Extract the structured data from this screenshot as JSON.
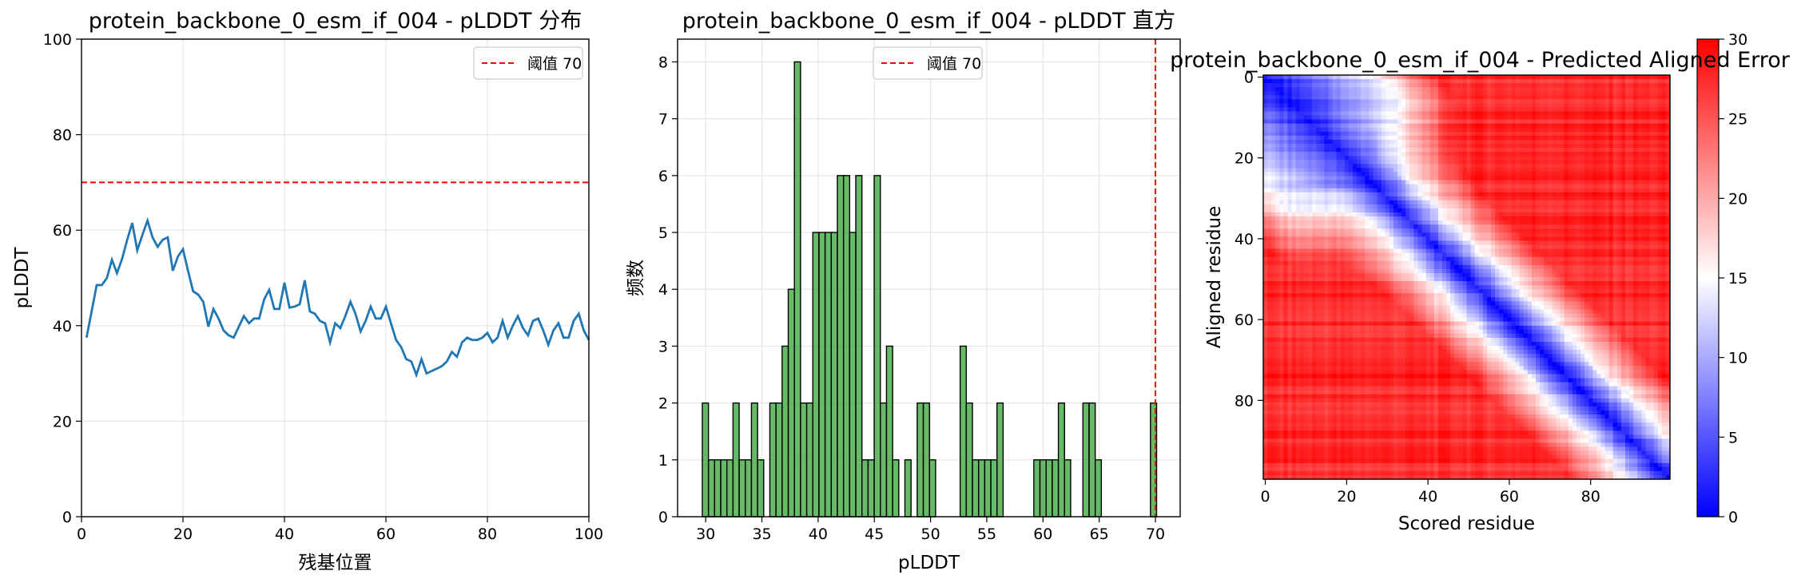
{
  "chart_data": [
    {
      "type": "line",
      "title": "protein_backbone_0_esm_if_004 - pLDDT 分布",
      "xlabel": "残基位置",
      "ylabel": "pLDDT",
      "xlim": [
        0,
        100
      ],
      "ylim": [
        0,
        100
      ],
      "xticks": [
        0,
        20,
        40,
        60,
        80,
        100
      ],
      "yticks": [
        0,
        20,
        40,
        60,
        80,
        100
      ],
      "grid": true,
      "legend_position": "top-right",
      "series": [
        {
          "color": "#1f77b4",
          "x": [
            1,
            2,
            3,
            4,
            5,
            6,
            7,
            8,
            9,
            10,
            11,
            12,
            13,
            14,
            15,
            16,
            17,
            18,
            19,
            20,
            21,
            22,
            23,
            24,
            25,
            26,
            27,
            28,
            29,
            30,
            31,
            32,
            33,
            34,
            35,
            36,
            37,
            38,
            39,
            40,
            41,
            42,
            43,
            44,
            45,
            46,
            47,
            48,
            49,
            50,
            51,
            52,
            53,
            54,
            55,
            56,
            57,
            58,
            59,
            60,
            61,
            62,
            63,
            64,
            65,
            66,
            67,
            68,
            69,
            70,
            71,
            72,
            73,
            74,
            75,
            76,
            77,
            78,
            79,
            80,
            81,
            82,
            83,
            84,
            85,
            86,
            87,
            88,
            89,
            90,
            91,
            92,
            93,
            94,
            95,
            96,
            97,
            98,
            99,
            100
          ],
          "y": [
            37.5,
            43,
            48.5,
            48.5,
            50,
            53.8,
            51,
            54,
            58,
            61.5,
            55.8,
            59,
            62,
            58.5,
            56.5,
            58,
            58.5,
            51.5,
            54.5,
            56,
            51.5,
            47.2,
            46.5,
            45,
            39.8,
            43.5,
            41.5,
            39,
            38,
            37.5,
            39.8,
            42,
            40.5,
            41.5,
            41.5,
            45.5,
            47.5,
            43.5,
            43.5,
            49,
            43.8,
            44,
            44.5,
            49.5,
            43,
            42.5,
            41,
            40.5,
            36.5,
            40.5,
            39.5,
            42,
            45,
            42.5,
            38.8,
            41,
            44,
            41.5,
            41.5,
            44,
            40.5,
            37,
            35.5,
            33,
            32.5,
            29.7,
            33,
            30,
            30.5,
            31,
            31.5,
            32.5,
            34.5,
            33.5,
            36.5,
            37.5,
            37,
            37,
            37.5,
            38.5,
            36.5,
            37.5,
            41,
            37.5,
            40,
            42,
            39.5,
            38,
            41,
            41.5,
            39,
            36,
            39,
            40.5,
            37.5,
            37.5,
            41,
            42.5,
            39,
            37
          ]
        }
      ],
      "hline": {
        "y": 70,
        "label": "阈值 70",
        "color": "#ff0000"
      }
    },
    {
      "type": "bar",
      "title": "protein_backbone_0_esm_if_004 - pLDDT 直方",
      "xlabel": "pLDDT",
      "ylabel": "频数",
      "xlim": [
        27.5,
        72.2
      ],
      "ylim": [
        0,
        8.4
      ],
      "xticks": [
        30,
        35,
        40,
        45,
        50,
        55,
        60,
        65,
        70
      ],
      "yticks": [
        0,
        1,
        2,
        3,
        4,
        5,
        6,
        7,
        8
      ],
      "grid": true,
      "legend_position": "top-center",
      "color": "#2ca02c",
      "bin_start": 29.7,
      "bin_width": 0.546,
      "values": [
        2,
        1,
        1,
        1,
        1,
        2,
        1,
        1,
        2,
        1,
        0,
        2,
        2,
        3,
        4,
        8,
        2,
        2,
        5,
        5,
        5,
        5,
        6,
        6,
        5,
        6,
        1,
        1,
        6,
        2,
        3,
        1,
        0,
        1,
        0,
        2,
        2,
        1,
        0,
        0,
        0,
        0,
        3,
        2,
        1,
        1,
        1,
        1,
        2,
        0,
        0,
        0,
        0,
        0,
        1,
        1,
        1,
        1,
        2,
        1,
        0,
        0,
        2,
        2,
        1,
        0,
        0,
        0,
        0,
        0,
        0,
        0,
        0,
        2
      ],
      "vline": {
        "x": 70,
        "label": "阈值 70",
        "color": "#ff0000"
      }
    },
    {
      "type": "heatmap",
      "title": "protein_backbone_0_esm_if_004 - Predicted Aligned Error",
      "xlabel": "Scored residue",
      "ylabel": "Aligned residue",
      "size": 100,
      "xticks": [
        0,
        20,
        40,
        60,
        80
      ],
      "yticks": [
        0,
        20,
        40,
        60,
        80
      ],
      "colormap": "bwr",
      "colorbar": {
        "min": 0,
        "max": 30,
        "ticks": [
          0,
          5,
          10,
          15,
          20,
          25,
          30
        ]
      }
    }
  ]
}
